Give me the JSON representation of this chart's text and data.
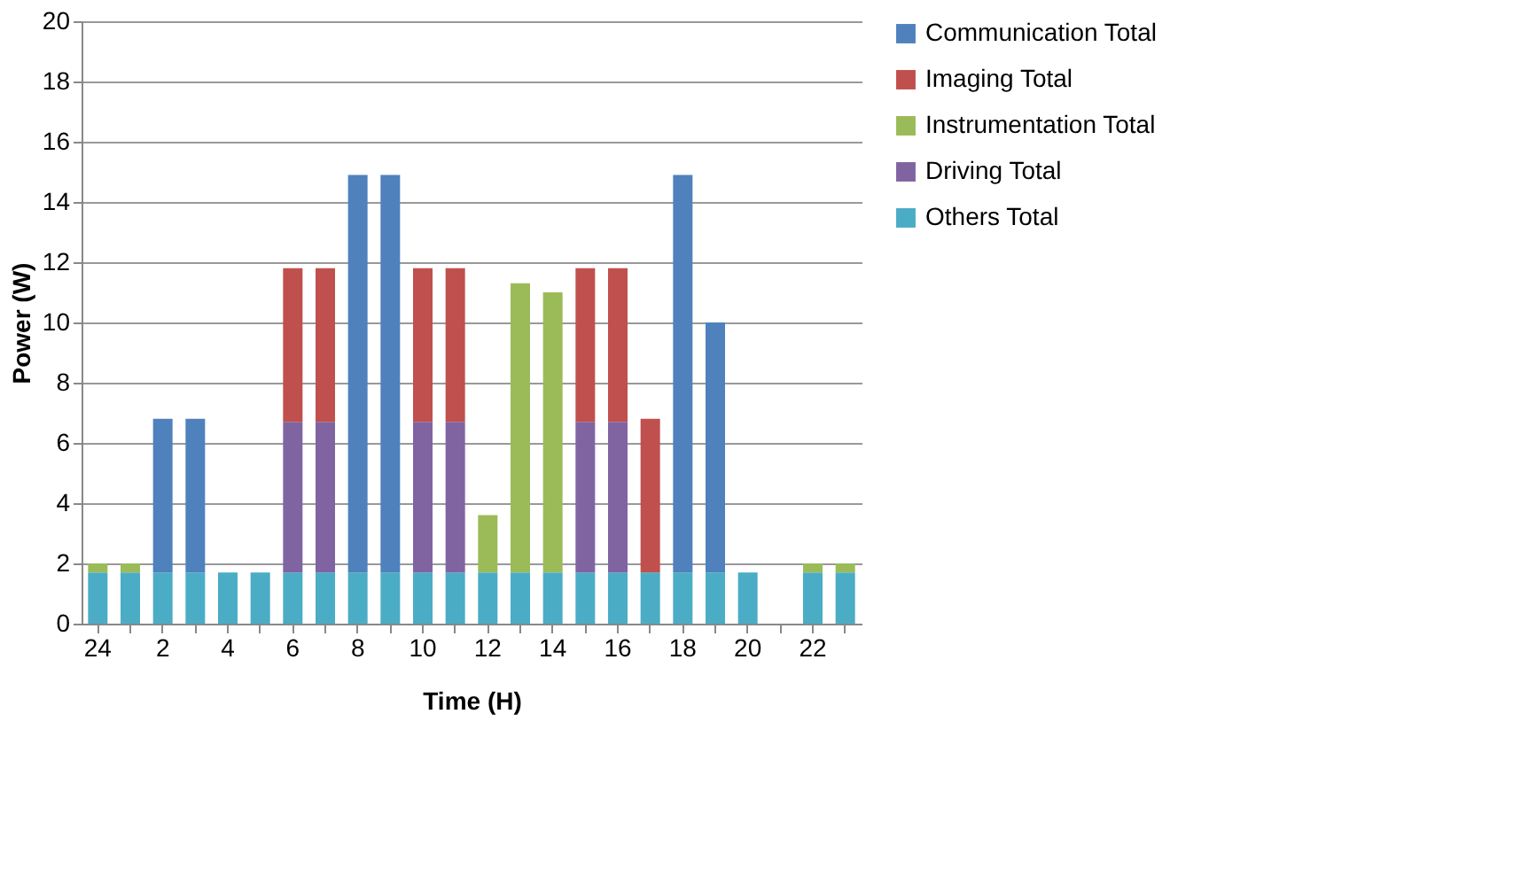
{
  "chart_data": {
    "type": "bar",
    "stacked": true,
    "xlabel": "Time (H)",
    "ylabel": "Power (W)",
    "categories": [
      "24",
      null,
      "2",
      null,
      "4",
      null,
      "6",
      null,
      "8",
      null,
      "10",
      null,
      "12",
      null,
      "14",
      null,
      "16",
      null,
      "18",
      null,
      "20",
      null,
      "22",
      null
    ],
    "series": [
      {
        "name": "Others Total",
        "color": "#4bacc6",
        "values": [
          1.7,
          1.7,
          1.7,
          1.7,
          1.7,
          1.7,
          1.7,
          1.7,
          1.7,
          1.7,
          1.7,
          1.7,
          1.7,
          1.7,
          1.7,
          1.7,
          1.7,
          1.7,
          1.7,
          1.7,
          1.7,
          0,
          1.7,
          1.7
        ]
      },
      {
        "name": "Driving Total",
        "color": "#8064a2",
        "values": [
          0,
          0,
          0,
          0,
          0,
          0,
          5,
          5,
          0,
          0,
          5,
          5,
          0,
          0,
          0,
          5,
          5,
          0,
          0,
          0,
          0,
          0,
          0,
          0
        ]
      },
      {
        "name": "Instrumentation Total",
        "color": "#9bbb59",
        "values": [
          0.3,
          0.3,
          0,
          0,
          0,
          0,
          0,
          0,
          0,
          0,
          0,
          0,
          1.9,
          9.6,
          9.3,
          0,
          0,
          0,
          0,
          0,
          0,
          0,
          0.3,
          0.3
        ]
      },
      {
        "name": "Imaging Total",
        "color": "#c0504d",
        "values": [
          0,
          0,
          0,
          0,
          0,
          0,
          5.1,
          5.1,
          0,
          0,
          5.1,
          5.1,
          0,
          0,
          0,
          5.1,
          5.1,
          5.1,
          0,
          0,
          0,
          0,
          0,
          0
        ]
      },
      {
        "name": "Communication Total",
        "color": "#4f81bd",
        "values": [
          0,
          0,
          5.1,
          5.1,
          0,
          0,
          0,
          0,
          13.2,
          13.2,
          0,
          0,
          0,
          0,
          0,
          0,
          0,
          0,
          13.2,
          8.3,
          0,
          0,
          0,
          0
        ]
      }
    ],
    "ylim": [
      0,
      20
    ],
    "yticks": [
      0,
      2,
      4,
      6,
      8,
      10,
      12,
      14,
      16,
      18,
      20
    ],
    "grid": "y",
    "legend": "right"
  }
}
